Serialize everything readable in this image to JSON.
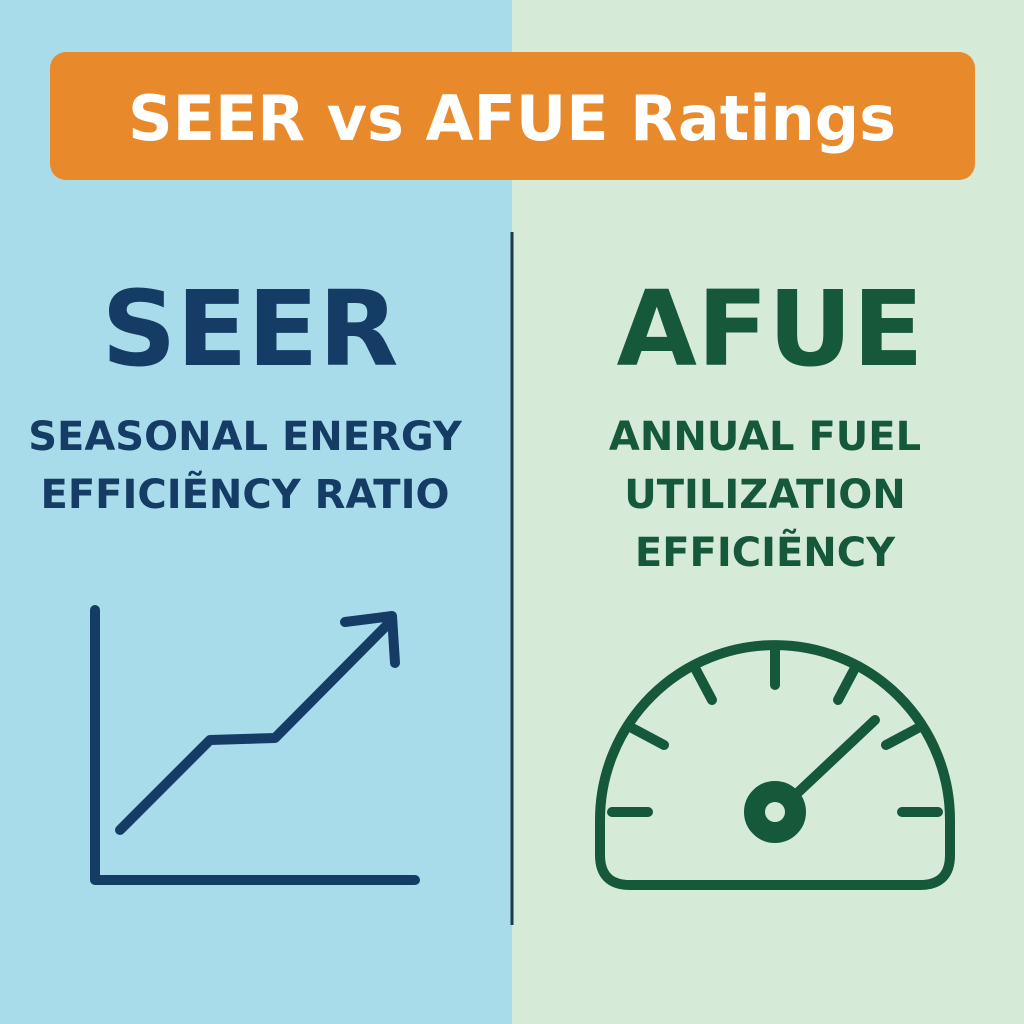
{
  "header": {
    "title": "SEER vs AFUE Ratings"
  },
  "panels": [
    {
      "acronym": "SEER",
      "lines": [
        "SEASONAL ENERGY",
        "EFFICIẼNCY RATIO"
      ]
    },
    {
      "acronym": "AFUE",
      "lines": [
        "ANNUAL FUEL",
        "UTILIZATION",
        "EFFICIẼNCY"
      ]
    }
  ]
}
